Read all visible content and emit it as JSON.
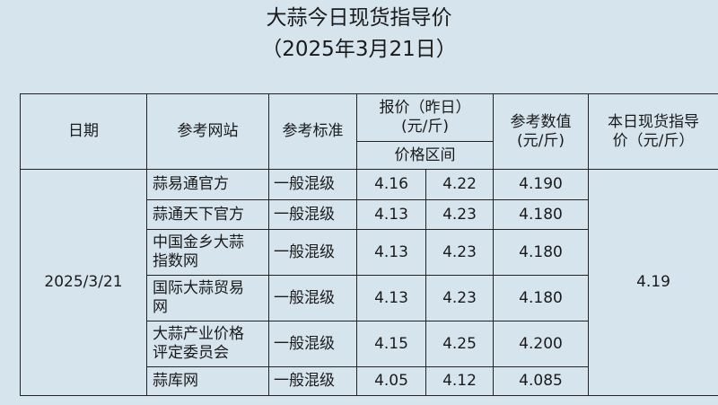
{
  "title": "大蒜今日现货指导价",
  "subtitle": "（2025年3月21日）",
  "headers": {
    "date": "日期",
    "site": "参考网站",
    "standard": "参考标准",
    "price_line1": "报价（昨日）",
    "price_line2": "(元/斤)",
    "range": "价格区间",
    "ref_line1": "参考数值",
    "ref_line2": "(元/斤)",
    "guide_line1": "本日现货指导",
    "guide_line2": "价（元/斤）"
  },
  "date": "2025/3/21",
  "guide_price": "4.19",
  "rows": [
    {
      "site_lines": [
        "蒜易通官方"
      ],
      "standard": "一般混级",
      "low": "4.16",
      "high": "4.22",
      "ref": "4.190"
    },
    {
      "site_lines": [
        "蒜通天下官方"
      ],
      "standard": "一般混级",
      "low": "4.13",
      "high": "4.23",
      "ref": "4.180"
    },
    {
      "site_lines": [
        "中国金乡大蒜",
        "指数网"
      ],
      "standard": "一般混级",
      "low": "4.13",
      "high": "4.23",
      "ref": "4.180"
    },
    {
      "site_lines": [
        "国际大蒜贸易",
        "网"
      ],
      "standard": "一般混级",
      "low": "4.13",
      "high": "4.23",
      "ref": "4.180"
    },
    {
      "site_lines": [
        "大蒜产业价格",
        "评定委员会"
      ],
      "standard": "一般混级",
      "low": "4.15",
      "high": "4.25",
      "ref": "4.200"
    },
    {
      "site_lines": [
        "蒜库网"
      ],
      "standard": "一般混级",
      "low": "4.05",
      "high": "4.12",
      "ref": "4.085"
    }
  ]
}
